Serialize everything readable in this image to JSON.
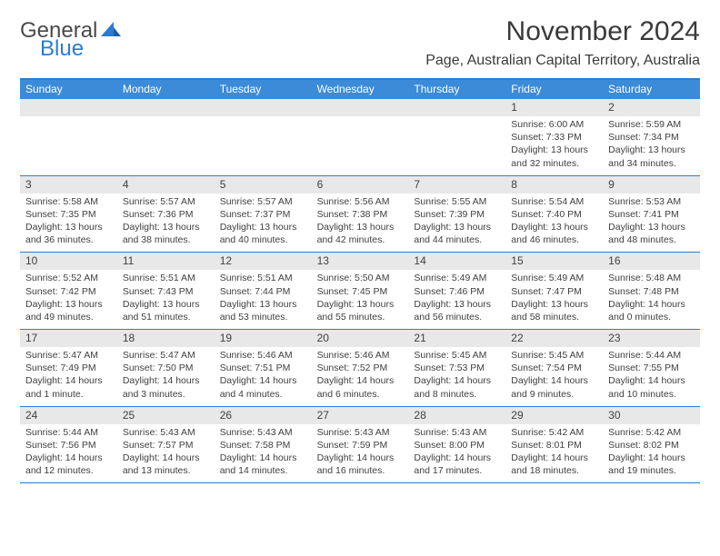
{
  "logo": {
    "text1": "General",
    "text2": "Blue"
  },
  "title": "November 2024",
  "location": "Page, Australian Capital Territory, Australia",
  "colors": {
    "header_bar": "#3b8bd8",
    "border": "#2b7cd3",
    "daynum_bg": "#e8e8e8",
    "text": "#404040",
    "logo_gray": "#4a4a4a",
    "logo_blue": "#2b7cd3"
  },
  "weekdays": [
    "Sunday",
    "Monday",
    "Tuesday",
    "Wednesday",
    "Thursday",
    "Friday",
    "Saturday"
  ],
  "weeks": [
    {
      "nums": [
        "",
        "",
        "",
        "",
        "",
        "1",
        "2"
      ],
      "cells": [
        null,
        null,
        null,
        null,
        null,
        {
          "sunrise": "Sunrise: 6:00 AM",
          "sunset": "Sunset: 7:33 PM",
          "daylight": "Daylight: 13 hours and 32 minutes."
        },
        {
          "sunrise": "Sunrise: 5:59 AM",
          "sunset": "Sunset: 7:34 PM",
          "daylight": "Daylight: 13 hours and 34 minutes."
        }
      ]
    },
    {
      "nums": [
        "3",
        "4",
        "5",
        "6",
        "7",
        "8",
        "9"
      ],
      "cells": [
        {
          "sunrise": "Sunrise: 5:58 AM",
          "sunset": "Sunset: 7:35 PM",
          "daylight": "Daylight: 13 hours and 36 minutes."
        },
        {
          "sunrise": "Sunrise: 5:57 AM",
          "sunset": "Sunset: 7:36 PM",
          "daylight": "Daylight: 13 hours and 38 minutes."
        },
        {
          "sunrise": "Sunrise: 5:57 AM",
          "sunset": "Sunset: 7:37 PM",
          "daylight": "Daylight: 13 hours and 40 minutes."
        },
        {
          "sunrise": "Sunrise: 5:56 AM",
          "sunset": "Sunset: 7:38 PM",
          "daylight": "Daylight: 13 hours and 42 minutes."
        },
        {
          "sunrise": "Sunrise: 5:55 AM",
          "sunset": "Sunset: 7:39 PM",
          "daylight": "Daylight: 13 hours and 44 minutes."
        },
        {
          "sunrise": "Sunrise: 5:54 AM",
          "sunset": "Sunset: 7:40 PM",
          "daylight": "Daylight: 13 hours and 46 minutes."
        },
        {
          "sunrise": "Sunrise: 5:53 AM",
          "sunset": "Sunset: 7:41 PM",
          "daylight": "Daylight: 13 hours and 48 minutes."
        }
      ]
    },
    {
      "nums": [
        "10",
        "11",
        "12",
        "13",
        "14",
        "15",
        "16"
      ],
      "cells": [
        {
          "sunrise": "Sunrise: 5:52 AM",
          "sunset": "Sunset: 7:42 PM",
          "daylight": "Daylight: 13 hours and 49 minutes."
        },
        {
          "sunrise": "Sunrise: 5:51 AM",
          "sunset": "Sunset: 7:43 PM",
          "daylight": "Daylight: 13 hours and 51 minutes."
        },
        {
          "sunrise": "Sunrise: 5:51 AM",
          "sunset": "Sunset: 7:44 PM",
          "daylight": "Daylight: 13 hours and 53 minutes."
        },
        {
          "sunrise": "Sunrise: 5:50 AM",
          "sunset": "Sunset: 7:45 PM",
          "daylight": "Daylight: 13 hours and 55 minutes."
        },
        {
          "sunrise": "Sunrise: 5:49 AM",
          "sunset": "Sunset: 7:46 PM",
          "daylight": "Daylight: 13 hours and 56 minutes."
        },
        {
          "sunrise": "Sunrise: 5:49 AM",
          "sunset": "Sunset: 7:47 PM",
          "daylight": "Daylight: 13 hours and 58 minutes."
        },
        {
          "sunrise": "Sunrise: 5:48 AM",
          "sunset": "Sunset: 7:48 PM",
          "daylight": "Daylight: 14 hours and 0 minutes."
        }
      ]
    },
    {
      "nums": [
        "17",
        "18",
        "19",
        "20",
        "21",
        "22",
        "23"
      ],
      "cells": [
        {
          "sunrise": "Sunrise: 5:47 AM",
          "sunset": "Sunset: 7:49 PM",
          "daylight": "Daylight: 14 hours and 1 minute."
        },
        {
          "sunrise": "Sunrise: 5:47 AM",
          "sunset": "Sunset: 7:50 PM",
          "daylight": "Daylight: 14 hours and 3 minutes."
        },
        {
          "sunrise": "Sunrise: 5:46 AM",
          "sunset": "Sunset: 7:51 PM",
          "daylight": "Daylight: 14 hours and 4 minutes."
        },
        {
          "sunrise": "Sunrise: 5:46 AM",
          "sunset": "Sunset: 7:52 PM",
          "daylight": "Daylight: 14 hours and 6 minutes."
        },
        {
          "sunrise": "Sunrise: 5:45 AM",
          "sunset": "Sunset: 7:53 PM",
          "daylight": "Daylight: 14 hours and 8 minutes."
        },
        {
          "sunrise": "Sunrise: 5:45 AM",
          "sunset": "Sunset: 7:54 PM",
          "daylight": "Daylight: 14 hours and 9 minutes."
        },
        {
          "sunrise": "Sunrise: 5:44 AM",
          "sunset": "Sunset: 7:55 PM",
          "daylight": "Daylight: 14 hours and 10 minutes."
        }
      ]
    },
    {
      "nums": [
        "24",
        "25",
        "26",
        "27",
        "28",
        "29",
        "30"
      ],
      "cells": [
        {
          "sunrise": "Sunrise: 5:44 AM",
          "sunset": "Sunset: 7:56 PM",
          "daylight": "Daylight: 14 hours and 12 minutes."
        },
        {
          "sunrise": "Sunrise: 5:43 AM",
          "sunset": "Sunset: 7:57 PM",
          "daylight": "Daylight: 14 hours and 13 minutes."
        },
        {
          "sunrise": "Sunrise: 5:43 AM",
          "sunset": "Sunset: 7:58 PM",
          "daylight": "Daylight: 14 hours and 14 minutes."
        },
        {
          "sunrise": "Sunrise: 5:43 AM",
          "sunset": "Sunset: 7:59 PM",
          "daylight": "Daylight: 14 hours and 16 minutes."
        },
        {
          "sunrise": "Sunrise: 5:43 AM",
          "sunset": "Sunset: 8:00 PM",
          "daylight": "Daylight: 14 hours and 17 minutes."
        },
        {
          "sunrise": "Sunrise: 5:42 AM",
          "sunset": "Sunset: 8:01 PM",
          "daylight": "Daylight: 14 hours and 18 minutes."
        },
        {
          "sunrise": "Sunrise: 5:42 AM",
          "sunset": "Sunset: 8:02 PM",
          "daylight": "Daylight: 14 hours and 19 minutes."
        }
      ]
    }
  ]
}
